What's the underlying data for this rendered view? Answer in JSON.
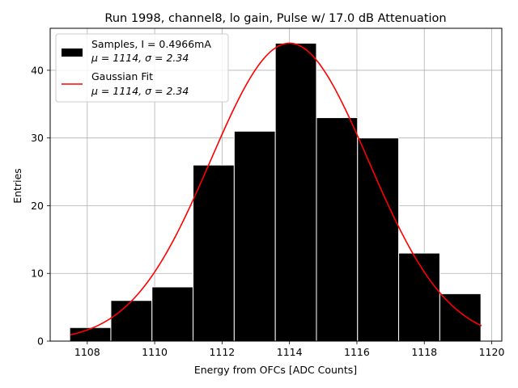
{
  "chart_data": {
    "type": "bar",
    "title": "Run 1998, channel8, lo gain, Pulse w/ 17.0 dB Attenuation",
    "xlabel": "Energy from OFCs [ADC Counts]",
    "ylabel": "Entries",
    "xlim": [
      1106.9,
      1120.3
    ],
    "ylim": [
      0,
      46.2
    ],
    "xticks": [
      1108,
      1110,
      1112,
      1114,
      1116,
      1118,
      1120
    ],
    "yticks": [
      0,
      10,
      20,
      30,
      40
    ],
    "grid": true,
    "bin_edges": [
      1107.48,
      1108.7,
      1109.92,
      1111.14,
      1112.36,
      1113.58,
      1114.8,
      1116.02,
      1117.24,
      1118.46,
      1119.68
    ],
    "values": [
      2,
      6,
      8,
      26,
      31,
      44,
      33,
      30,
      13,
      7
    ],
    "fit": {
      "mu": 1114.0,
      "sigma": 2.34,
      "amplitude": 44,
      "x_range": [
        1107.5,
        1119.7
      ]
    },
    "legend": {
      "position": "upper-left",
      "entries": [
        {
          "name": "Samples, I = 0.4966mA",
          "detail": "μ = 1114, σ = 2.34",
          "color": "#000000",
          "kind": "patch"
        },
        {
          "name": "Gaussian Fit",
          "detail": "μ = 1114, σ = 2.34",
          "color": "#ff0000",
          "kind": "line"
        }
      ]
    }
  }
}
